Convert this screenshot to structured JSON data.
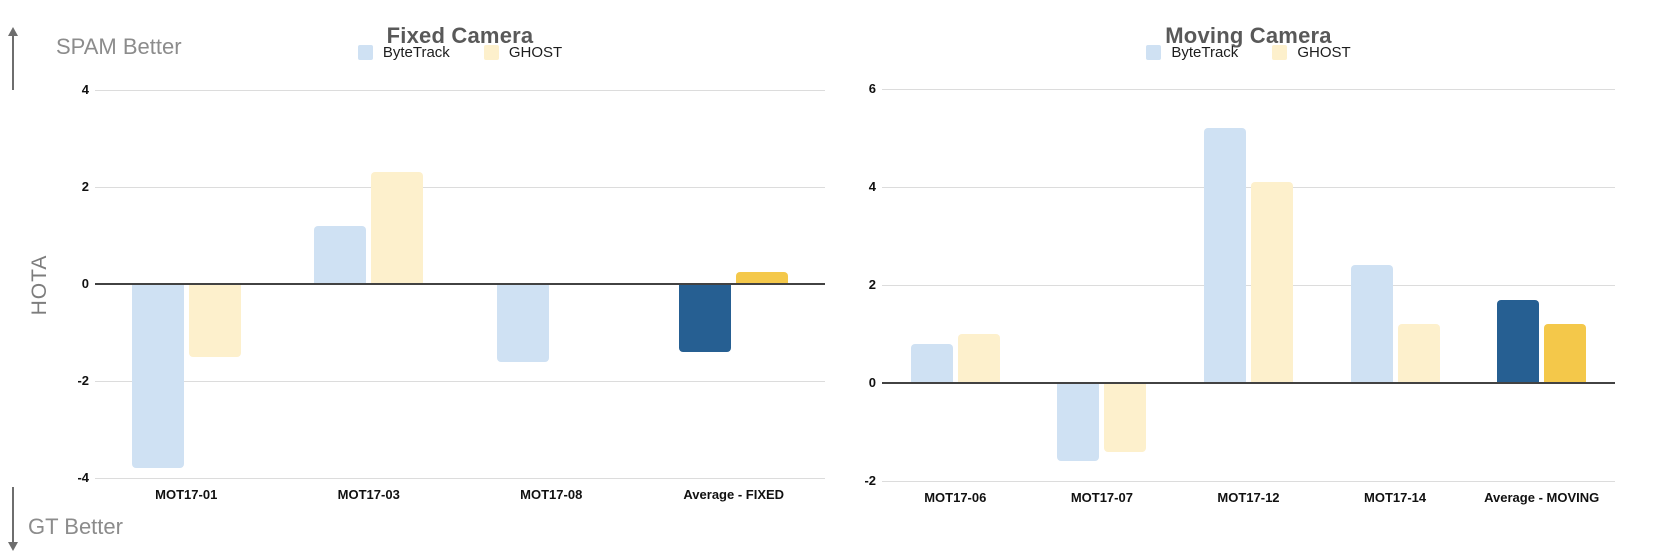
{
  "annotations": {
    "top_left": "SPAM Better",
    "bottom_left": "GT Better",
    "y_axis_label": "HOTA",
    "up_arrow_icon": "arrow-up",
    "down_arrow_icon": "arrow-down"
  },
  "colors": {
    "bytetrack_light": "#cfe1f3",
    "ghost_light": "#fdf0cc",
    "bytetrack_dark": "#265f92",
    "ghost_dark": "#f4c84a",
    "grid": "#dcdcdc",
    "zero_line": "#424242",
    "title_text": "#595959",
    "side_text": "#8c8c8c",
    "axis_text": "#111111"
  },
  "chart_data": [
    {
      "type": "bar",
      "title": "Fixed Camera",
      "legend": [
        "ByteTrack",
        "GHOST"
      ],
      "legend_position": "top",
      "ylabel": "HOTA",
      "grid": true,
      "ylim": [
        -4,
        4
      ],
      "yticks": [
        4,
        2,
        0,
        -2,
        -4
      ],
      "categories": [
        "MOT17-01",
        "MOT17-03",
        "MOT17-08",
        "Average - FIXED"
      ],
      "series": [
        {
          "name": "ByteTrack",
          "values": [
            -3.8,
            1.2,
            -1.6,
            -1.4
          ]
        },
        {
          "name": "GHOST",
          "values": [
            -1.5,
            2.3,
            0,
            0.25
          ]
        }
      ],
      "highlight_category": "Average - FIXED"
    },
    {
      "type": "bar",
      "title": "Moving Camera",
      "legend": [
        "ByteTrack",
        "GHOST"
      ],
      "legend_position": "top",
      "ylabel": "HOTA",
      "grid": true,
      "ylim": [
        -2,
        6
      ],
      "yticks": [
        6,
        4,
        2,
        0,
        -2
      ],
      "categories": [
        "MOT17-06",
        "MOT17-07",
        "MOT17-12",
        "MOT17-14",
        "Average - MOVING"
      ],
      "series": [
        {
          "name": "ByteTrack",
          "values": [
            0.8,
            -1.6,
            5.2,
            2.4,
            1.7
          ]
        },
        {
          "name": "GHOST",
          "values": [
            1.0,
            -1.4,
            4.1,
            1.2,
            1.2
          ]
        }
      ],
      "highlight_category": "Average - MOVING"
    }
  ]
}
